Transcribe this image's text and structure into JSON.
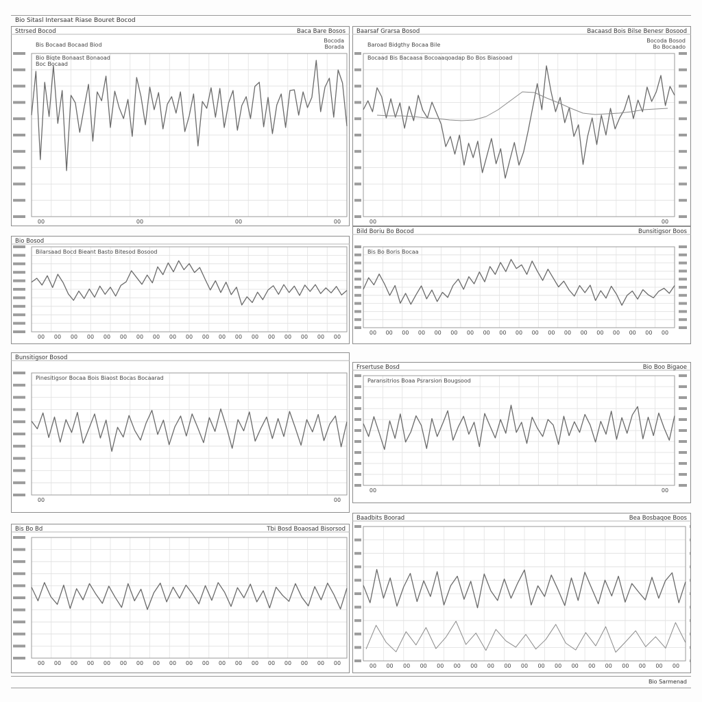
{
  "page": {
    "title": "Bio Sitasl Intersaat Riase Bouret Bocod",
    "footer": "Bio Sarmenad"
  },
  "chart_data": [
    {
      "type": "line",
      "title": "Sttrsed Bocod",
      "subtitle": "Bis Bocaad Bocaad Biod",
      "header_right": "Baca Bare Bosos",
      "legend": [
        "Bio Biqte Bonaast Bonaoad",
        "Boc Bocaad"
      ],
      "side_labels": [
        "Bocoda",
        "Borada"
      ],
      "line_color": "#6a6a6a",
      "series": [
        {
          "values": [
            0.1,
            0.74,
            -0.55,
            0.58,
            0.08,
            0.82,
            -0.02,
            0.46,
            -0.71,
            0.39,
            0.28,
            -0.15,
            0.21,
            0.55,
            -0.28,
            0.44,
            0.31,
            0.67,
            -0.08,
            0.45,
            0.21,
            0.05,
            0.33,
            -0.21,
            0.65,
            0.37,
            -0.04,
            0.51,
            0.18,
            0.43,
            -0.1,
            0.26,
            0.37,
            0.13,
            0.44,
            -0.14,
            0.09,
            0.41,
            -0.35,
            0.3,
            0.2,
            0.5,
            0.07,
            0.49,
            -0.08,
            0.28,
            0.46,
            -0.12,
            0.24,
            0.37,
            0.05,
            0.52,
            0.58,
            -0.07,
            0.36,
            -0.17,
            0.25,
            0.41,
            -0.08,
            0.46,
            0.47,
            0.1,
            0.44,
            0.21,
            0.36,
            0.9,
            0.15,
            0.51,
            0.64,
            0.07,
            0.76,
            0.57,
            -0.06
          ]
        }
      ],
      "tick_labels": [
        "00",
        "00",
        "00",
        "00"
      ]
    },
    {
      "type": "line",
      "title": "Baarsaf Grarsa Bosod",
      "subtitle": "Baroad Bidgthy Bocaa Bile",
      "header_right": "Bacaasd Bois Bilse Benesr Bosood",
      "legend": [
        "Bocaad Bis Bacaasa Bocoaaqoadap Bo Bos Biasooad"
      ],
      "side_labels": [
        "Bocoda Bosod",
        "Bo Bocaado"
      ],
      "line_color": "#6a6a6a",
      "series": [
        {
          "values": [
            0.18,
            0.31,
            0.15,
            0.5,
            0.37,
            0.06,
            0.34,
            0.07,
            0.28,
            -0.09,
            0.23,
            0.02,
            0.39,
            0.17,
            0.06,
            0.29,
            0.13,
            -0.03,
            -0.36,
            -0.21,
            -0.47,
            -0.19,
            -0.63,
            -0.31,
            -0.52,
            -0.28,
            -0.74,
            -0.49,
            -0.24,
            -0.61,
            -0.39,
            -0.82,
            -0.56,
            -0.3,
            -0.63,
            -0.44,
            -0.13,
            0.21,
            0.56,
            0.18,
            0.82,
            0.45,
            0.15,
            0.36,
            -0.01,
            0.21,
            -0.21,
            -0.04,
            -0.62,
            -0.21,
            0.06,
            -0.33,
            0.1,
            -0.19,
            0.2,
            -0.1,
            0.06,
            0.18,
            0.39,
            0.05,
            0.32,
            0.15,
            0.51,
            0.3,
            0.44,
            0.68,
            0.24,
            0.52,
            0.39
          ]
        },
        {
          "values": [
            0.1,
            0.09,
            0.09,
            0.08,
            0.06,
            0.05,
            0.03,
            0.02,
            0.03,
            0.08,
            0.18,
            0.31,
            0.44,
            0.43,
            0.35,
            0.28,
            0.2,
            0.13,
            0.11,
            0.12,
            0.13,
            0.15,
            0.18,
            0.19,
            0.2
          ]
        }
      ],
      "tick_labels": [
        "00",
        "00"
      ]
    },
    {
      "type": "line",
      "title": "Bio Bosod",
      "subtitle": "Bilarsaad Bocd Bieant Basto Bitesod Bosood",
      "header_right": "",
      "legend": [],
      "side_labels": [],
      "line_color": "#6a6a6a",
      "series": [
        {
          "values": [
            0.2,
            0.31,
            0.12,
            0.38,
            0.05,
            0.42,
            0.19,
            -0.13,
            -0.31,
            -0.05,
            -0.26,
            0.01,
            -0.22,
            0.09,
            -0.14,
            0.06,
            -0.19,
            0.11,
            0.21,
            0.52,
            0.33,
            0.14,
            0.4,
            0.18,
            0.63,
            0.41,
            0.74,
            0.49,
            0.8,
            0.55,
            0.72,
            0.47,
            0.61,
            0.29,
            -0.02,
            0.24,
            -0.09,
            0.2,
            -0.15,
            0.06,
            -0.44,
            -0.21,
            -0.37,
            -0.08,
            -0.29,
            -0.02,
            0.1,
            -0.14,
            0.13,
            -0.09,
            0.09,
            -0.17,
            0.12,
            -0.06,
            0.13,
            -0.12,
            0.04,
            -0.1,
            0.08,
            -0.16,
            -0.03
          ]
        }
      ],
      "tick_labels": [
        "00",
        "00",
        "00",
        "00",
        "00",
        "00",
        "00",
        "00",
        "00",
        "00",
        "00",
        "00",
        "00",
        "00",
        "00",
        "00",
        "00",
        "00",
        "00"
      ]
    },
    {
      "type": "line",
      "title": "Bild Boriu Bo Bocod",
      "subtitle": "Bis Bo Boris Bocaa",
      "header_right": "Bunsitigsor Boos",
      "legend": [],
      "side_labels": [],
      "line_color": "#6a6a6a",
      "series": [
        {
          "values": [
            -0.06,
            0.28,
            0.07,
            0.39,
            0.1,
            -0.24,
            0.05,
            -0.47,
            -0.18,
            -0.5,
            -0.22,
            0.04,
            -0.34,
            -0.08,
            -0.42,
            -0.15,
            -0.3,
            0.05,
            0.24,
            -0.06,
            0.31,
            0.1,
            0.45,
            0.16,
            0.61,
            0.38,
            0.73,
            0.46,
            0.82,
            0.55,
            0.66,
            0.38,
            0.77,
            0.47,
            0.2,
            0.53,
            0.27,
            0.01,
            0.18,
            -0.08,
            -0.26,
            0.05,
            -0.16,
            0.06,
            -0.39,
            -0.1,
            -0.32,
            0.03,
            -0.21,
            -0.53,
            -0.24,
            -0.11,
            -0.35,
            -0.07,
            -0.22,
            -0.31,
            -0.12,
            -0.03,
            -0.18,
            0.05
          ]
        }
      ],
      "tick_labels": [
        "00",
        "00",
        "00",
        "00",
        "00",
        "00",
        "00",
        "00",
        "00",
        "00",
        "00",
        "00",
        "00",
        "00",
        "00",
        "00",
        "00",
        "00",
        "00"
      ]
    },
    {
      "type": "line",
      "title": "Bunsitigsor Bosod",
      "subtitle": "Pinesitigsor Bocaa Bois Biaost Bocas Bocaarad",
      "header_right": "",
      "legend": [],
      "side_labels": [],
      "line_color": "#6a6a6a",
      "series": [
        {
          "values": [
            0.25,
            0.1,
            0.41,
            -0.07,
            0.33,
            -0.16,
            0.28,
            0.03,
            0.42,
            -0.18,
            0.1,
            0.39,
            -0.08,
            0.27,
            -0.34,
            0.13,
            -0.06,
            0.36,
            0.07,
            -0.12,
            0.22,
            0.46,
            -0.01,
            0.27,
            -0.21,
            0.14,
            0.35,
            -0.04,
            0.39,
            0.12,
            -0.17,
            0.32,
            0.05,
            0.49,
            0.13,
            -0.28,
            0.28,
            0.06,
            0.43,
            -0.14,
            0.11,
            0.33,
            -0.09,
            0.3,
            -0.05,
            0.44,
            0.12,
            -0.22,
            0.28,
            0.04,
            0.38,
            -0.13,
            0.19,
            0.35,
            -0.25,
            0.24
          ]
        }
      ],
      "tick_labels": [
        "00",
        "00"
      ]
    },
    {
      "type": "line",
      "title": "Frsertuse Bosd",
      "subtitle": "Paransitrios Boaa Psrarsion Bougsood",
      "header_right": "Bio Boo Bigaoe",
      "legend": [],
      "side_labels": [],
      "line_color": "#6a6a6a",
      "series": [
        {
          "values": [
            0.15,
            -0.13,
            0.3,
            -0.05,
            -0.41,
            0.21,
            -0.17,
            0.36,
            -0.25,
            -0.03,
            0.32,
            0.11,
            -0.39,
            0.26,
            -0.13,
            0.14,
            0.43,
            -0.21,
            0.08,
            0.31,
            -0.08,
            0.18,
            -0.35,
            0.37,
            0.1,
            -0.16,
            0.24,
            -0.06,
            0.55,
            -0.04,
            0.18,
            -0.28,
            0.29,
            0.05,
            -0.13,
            0.24,
            0.12,
            -0.3,
            0.31,
            -0.11,
            0.19,
            -0.04,
            0.35,
            0.12,
            -0.25,
            0.2,
            -0.08,
            0.42,
            -0.19,
            0.28,
            -0.06,
            0.34,
            0.52,
            -0.18,
            0.29,
            -0.11,
            0.38,
            0.06,
            -0.21,
            0.32
          ]
        }
      ],
      "tick_labels": [
        "00",
        "00"
      ]
    },
    {
      "type": "line",
      "title": "Bis Bo Bd",
      "subtitle": "",
      "header_right": "Tbi Bosd Boaosad Bisorsod",
      "legend": [],
      "side_labels": [],
      "line_color": "#6a6a6a",
      "series": [
        {
          "values": [
            0.21,
            -0.06,
            0.3,
            0.02,
            -0.13,
            0.25,
            -0.21,
            0.18,
            -0.04,
            0.28,
            0.07,
            -0.11,
            0.23,
            0.01,
            -0.19,
            0.28,
            -0.06,
            0.17,
            -0.23,
            0.1,
            0.29,
            -0.08,
            0.21,
            -0.01,
            0.25,
            0.08,
            -0.12,
            0.24,
            -0.05,
            0.3,
            0.11,
            -0.17,
            0.2,
            0.0,
            0.27,
            -0.08,
            0.14,
            -0.2,
            0.21,
            0.05,
            -0.07,
            0.28,
            0.01,
            -0.16,
            0.22,
            -0.04,
            0.29,
            0.06,
            -0.22,
            0.19
          ]
        }
      ],
      "tick_labels": [
        "00",
        "00",
        "00",
        "00",
        "00",
        "00",
        "00",
        "00",
        "00",
        "00",
        "00",
        "00",
        "00",
        "00",
        "00",
        "00",
        "00",
        "00",
        "00"
      ]
    },
    {
      "type": "line",
      "title": "Baadbits Boorad",
      "subtitle": "",
      "header_right": "Bea Bosbaqoe Boos",
      "legend": [],
      "side_labels": [],
      "line_color": "#6a6a6a",
      "series": [
        {
          "values": [
            0.15,
            -0.16,
            0.43,
            -0.08,
            0.28,
            -0.22,
            0.12,
            0.36,
            -0.14,
            0.23,
            -0.05,
            0.39,
            -0.2,
            0.14,
            0.31,
            -0.1,
            0.22,
            -0.25,
            0.35,
            0.05,
            -0.12,
            0.26,
            -0.08,
            0.19,
            0.42,
            -0.2,
            0.14,
            -0.05,
            0.33,
            0.07,
            -0.21,
            0.28,
            -0.12,
            0.38,
            0.1,
            -0.18,
            0.24,
            -0.04,
            0.31,
            -0.15,
            0.18,
            0.03,
            -0.11,
            0.29,
            -0.08,
            0.23,
            0.37,
            -0.16,
            0.21
          ]
        },
        {
          "values": [
            0.2,
            0.72,
            0.35,
            0.14,
            0.58,
            0.29,
            0.67,
            0.21,
            0.46,
            0.81,
            0.3,
            0.55,
            0.17,
            0.63,
            0.38,
            0.24,
            0.52,
            0.2,
            0.41,
            0.74,
            0.33,
            0.18,
            0.56,
            0.27,
            0.69,
            0.13,
            0.36,
            0.6,
            0.25,
            0.47,
            0.22,
            0.78,
            0.34
          ]
        }
      ],
      "tick_labels": [
        "00",
        "00",
        "00",
        "00",
        "00",
        "00",
        "00",
        "00",
        "00",
        "00",
        "00",
        "00",
        "00",
        "00",
        "00",
        "00",
        "00",
        "00",
        "00"
      ]
    }
  ]
}
